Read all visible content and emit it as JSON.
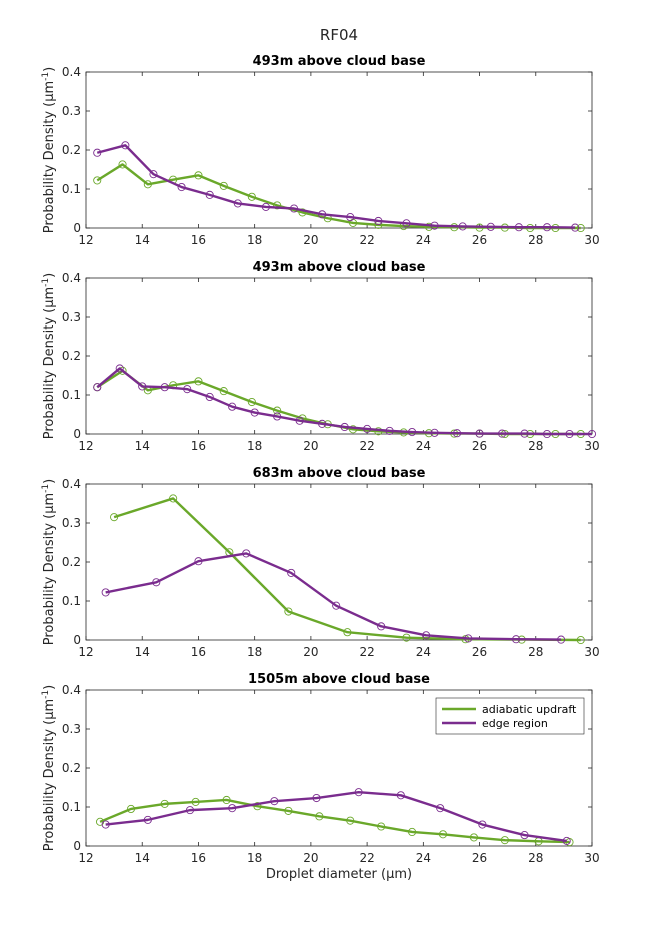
{
  "figure_title": "RF04",
  "xlabel": "Droplet diameter (μm)",
  "ylabel": "Probability Density (μm",
  "ylabel_sup": "-1",
  "ylabel_tail": ")",
  "colors": {
    "adiabatic": "#6aa82a",
    "edge": "#7a2c8e",
    "marker": "#000000"
  },
  "legend": {
    "items": [
      "adiabatic updraft",
      "edge region"
    ],
    "position": "top-right",
    "panel": 3
  },
  "chart_data": [
    {
      "type": "line",
      "title": "493m above cloud base",
      "xlim": [
        12,
        30
      ],
      "ylim": [
        0,
        0.4
      ],
      "xticks": [
        12,
        14,
        16,
        18,
        20,
        22,
        24,
        26,
        28,
        30
      ],
      "yticks": [
        0,
        0.1,
        0.2,
        0.3,
        0.4
      ],
      "series": [
        {
          "name": "adiabatic updraft",
          "x": [
            12.4,
            13.3,
            14.2,
            15.1,
            16.0,
            16.9,
            17.9,
            18.8,
            19.7,
            20.6,
            21.5,
            22.4,
            23.3,
            24.2,
            25.1,
            26.0,
            26.9,
            27.8,
            28.7,
            29.6
          ],
          "y": [
            0.122,
            0.163,
            0.112,
            0.124,
            0.135,
            0.108,
            0.08,
            0.058,
            0.04,
            0.025,
            0.013,
            0.008,
            0.005,
            0.003,
            0.002,
            0.001,
            0.001,
            0.0,
            0.0,
            0.0
          ]
        },
        {
          "name": "edge region",
          "x": [
            12.4,
            13.4,
            14.4,
            15.4,
            16.4,
            17.4,
            18.4,
            19.4,
            20.4,
            21.4,
            22.4,
            23.4,
            24.4,
            25.4,
            26.4,
            27.4,
            28.4,
            29.4
          ],
          "y": [
            0.193,
            0.212,
            0.138,
            0.105,
            0.085,
            0.063,
            0.054,
            0.05,
            0.035,
            0.028,
            0.018,
            0.012,
            0.006,
            0.004,
            0.003,
            0.002,
            0.002,
            0.001
          ]
        }
      ]
    },
    {
      "type": "line",
      "title": "493m above cloud base",
      "xlim": [
        12,
        30
      ],
      "ylim": [
        0,
        0.4
      ],
      "xticks": [
        12,
        14,
        16,
        18,
        20,
        22,
        24,
        26,
        28,
        30
      ],
      "yticks": [
        0,
        0.1,
        0.2,
        0.3,
        0.4
      ],
      "series": [
        {
          "name": "adiabatic updraft",
          "x": [
            12.4,
            13.3,
            14.2,
            15.1,
            16.0,
            16.9,
            17.9,
            18.8,
            19.7,
            20.6,
            21.5,
            22.4,
            23.3,
            24.2,
            25.1,
            26.0,
            26.9,
            27.8,
            28.7,
            29.6
          ],
          "y": [
            0.12,
            0.162,
            0.112,
            0.125,
            0.135,
            0.11,
            0.082,
            0.06,
            0.04,
            0.025,
            0.012,
            0.007,
            0.004,
            0.002,
            0.001,
            0.001,
            0.0,
            0.0,
            0.0,
            0.0
          ]
        },
        {
          "name": "edge region",
          "x": [
            12.4,
            13.2,
            14.0,
            14.8,
            15.6,
            16.4,
            17.2,
            18.0,
            18.8,
            19.6,
            20.4,
            21.2,
            22.0,
            22.8,
            23.6,
            24.4,
            25.2,
            26.0,
            26.8,
            27.6,
            28.4,
            29.2,
            30.0
          ],
          "y": [
            0.12,
            0.168,
            0.122,
            0.12,
            0.115,
            0.095,
            0.07,
            0.055,
            0.045,
            0.034,
            0.026,
            0.018,
            0.013,
            0.008,
            0.005,
            0.003,
            0.002,
            0.001,
            0.001,
            0.001,
            0.0,
            0.0,
            0.0
          ]
        }
      ]
    },
    {
      "type": "line",
      "title": "683m above cloud base",
      "xlim": [
        12,
        30
      ],
      "ylim": [
        0,
        0.4
      ],
      "xticks": [
        12,
        14,
        16,
        18,
        20,
        22,
        24,
        26,
        28,
        30
      ],
      "yticks": [
        0,
        0.1,
        0.2,
        0.3,
        0.4
      ],
      "series": [
        {
          "name": "adiabatic updraft",
          "x": [
            13.0,
            15.1,
            17.1,
            19.2,
            21.3,
            23.4,
            25.5,
            27.5,
            29.6
          ],
          "y": [
            0.315,
            0.363,
            0.225,
            0.073,
            0.02,
            0.006,
            0.002,
            0.001,
            0.0
          ]
        },
        {
          "name": "edge region",
          "x": [
            12.7,
            14.5,
            16.0,
            17.7,
            19.3,
            20.9,
            22.5,
            24.1,
            25.6,
            27.3,
            28.9
          ],
          "y": [
            0.122,
            0.148,
            0.202,
            0.222,
            0.172,
            0.088,
            0.035,
            0.012,
            0.004,
            0.002,
            0.001
          ]
        }
      ]
    },
    {
      "type": "line",
      "title": "1505m above cloud base",
      "xlim": [
        12,
        30
      ],
      "ylim": [
        0,
        0.4
      ],
      "xticks": [
        12,
        14,
        16,
        18,
        20,
        22,
        24,
        26,
        28,
        30
      ],
      "yticks": [
        0,
        0.1,
        0.2,
        0.3,
        0.4
      ],
      "series": [
        {
          "name": "adiabatic updraft",
          "x": [
            12.5,
            13.6,
            14.8,
            15.9,
            17.0,
            18.1,
            19.2,
            20.3,
            21.4,
            22.5,
            23.6,
            24.7,
            25.8,
            26.9,
            28.1,
            29.2
          ],
          "y": [
            0.062,
            0.095,
            0.108,
            0.113,
            0.118,
            0.102,
            0.09,
            0.076,
            0.065,
            0.05,
            0.036,
            0.03,
            0.022,
            0.015,
            0.012,
            0.01
          ]
        },
        {
          "name": "edge region",
          "x": [
            12.7,
            14.2,
            15.7,
            17.2,
            18.7,
            20.2,
            21.7,
            23.2,
            24.6,
            26.1,
            27.6,
            29.1
          ],
          "y": [
            0.055,
            0.067,
            0.092,
            0.097,
            0.115,
            0.123,
            0.138,
            0.13,
            0.097,
            0.055,
            0.028,
            0.013
          ]
        }
      ]
    }
  ]
}
